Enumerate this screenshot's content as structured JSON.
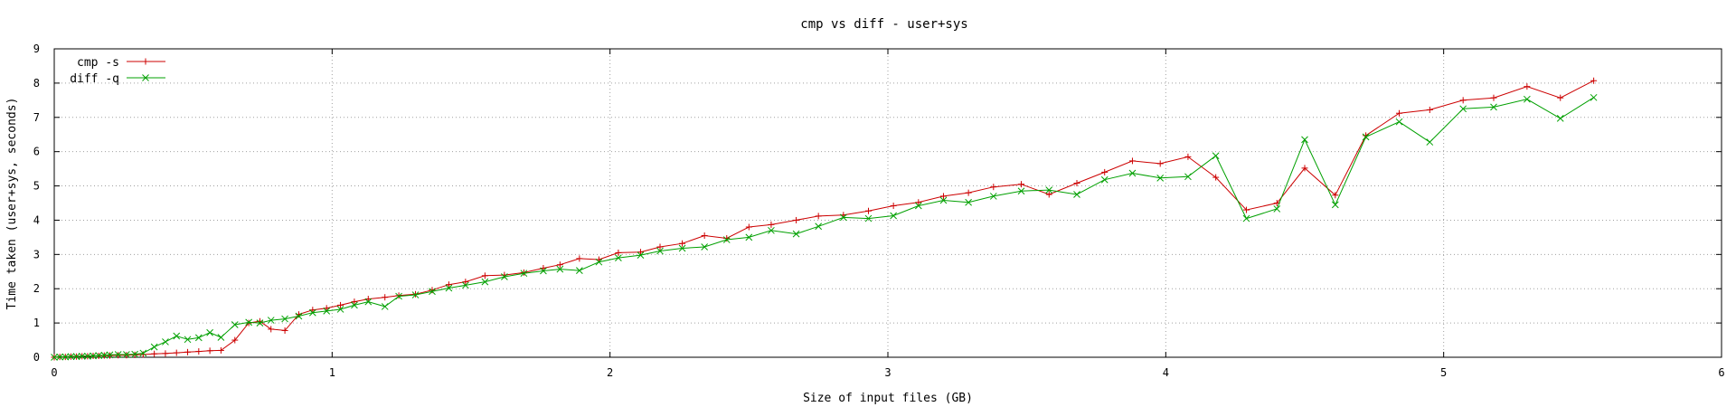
{
  "chart_data": {
    "type": "line",
    "title": "cmp vs diff - user+sys",
    "xlabel": "Size of input files (GB)",
    "ylabel": "Time taken (user+sys, seconds)",
    "xlim": [
      0,
      6
    ],
    "ylim": [
      0,
      9
    ],
    "xticks": [
      "0",
      "1",
      "2",
      "3",
      "4",
      "5",
      "6"
    ],
    "yticks": [
      "0",
      "1",
      "2",
      "3",
      "4",
      "5",
      "6",
      "7",
      "8",
      "9"
    ],
    "grid": true,
    "legend_position": "top-left",
    "series": [
      {
        "name": "cmp -s",
        "color": "#cc0000",
        "marker": "plus",
        "points": [
          [
            0.0,
            0.0
          ],
          [
            0.02,
            0.01
          ],
          [
            0.04,
            0.01
          ],
          [
            0.06,
            0.02
          ],
          [
            0.08,
            0.02
          ],
          [
            0.1,
            0.03
          ],
          [
            0.12,
            0.03
          ],
          [
            0.14,
            0.04
          ],
          [
            0.16,
            0.04
          ],
          [
            0.18,
            0.05
          ],
          [
            0.2,
            0.05
          ],
          [
            0.23,
            0.06
          ],
          [
            0.26,
            0.06
          ],
          [
            0.29,
            0.07
          ],
          [
            0.32,
            0.08
          ],
          [
            0.36,
            0.1
          ],
          [
            0.4,
            0.11
          ],
          [
            0.44,
            0.13
          ],
          [
            0.48,
            0.15
          ],
          [
            0.52,
            0.17
          ],
          [
            0.56,
            0.19
          ],
          [
            0.6,
            0.2
          ],
          [
            0.65,
            0.5
          ],
          [
            0.7,
            1.0
          ],
          [
            0.74,
            1.05
          ],
          [
            0.78,
            0.82
          ],
          [
            0.83,
            0.78
          ],
          [
            0.88,
            1.25
          ],
          [
            0.93,
            1.38
          ],
          [
            0.98,
            1.43
          ],
          [
            1.03,
            1.52
          ],
          [
            1.08,
            1.62
          ],
          [
            1.13,
            1.7
          ],
          [
            1.19,
            1.75
          ],
          [
            1.24,
            1.8
          ],
          [
            1.3,
            1.84
          ],
          [
            1.36,
            1.96
          ],
          [
            1.42,
            2.12
          ],
          [
            1.48,
            2.2
          ],
          [
            1.55,
            2.38
          ],
          [
            1.62,
            2.4
          ],
          [
            1.69,
            2.47
          ],
          [
            1.76,
            2.6
          ],
          [
            1.82,
            2.7
          ],
          [
            1.89,
            2.88
          ],
          [
            1.96,
            2.85
          ],
          [
            2.03,
            3.05
          ],
          [
            2.11,
            3.07
          ],
          [
            2.18,
            3.22
          ],
          [
            2.26,
            3.32
          ],
          [
            2.34,
            3.55
          ],
          [
            2.42,
            3.47
          ],
          [
            2.5,
            3.8
          ],
          [
            2.58,
            3.87
          ],
          [
            2.67,
            4.0
          ],
          [
            2.75,
            4.12
          ],
          [
            2.84,
            4.15
          ],
          [
            2.93,
            4.27
          ],
          [
            3.02,
            4.42
          ],
          [
            3.11,
            4.52
          ],
          [
            3.2,
            4.7
          ],
          [
            3.29,
            4.8
          ],
          [
            3.38,
            4.97
          ],
          [
            3.48,
            5.05
          ],
          [
            3.58,
            4.75
          ],
          [
            3.68,
            5.08
          ],
          [
            3.78,
            5.4
          ],
          [
            3.88,
            5.73
          ],
          [
            3.98,
            5.65
          ],
          [
            4.08,
            5.85
          ],
          [
            4.18,
            5.25
          ],
          [
            4.29,
            4.3
          ],
          [
            4.4,
            4.5
          ],
          [
            4.5,
            5.52
          ],
          [
            4.61,
            4.73
          ],
          [
            4.72,
            6.47
          ],
          [
            4.84,
            7.12
          ],
          [
            4.95,
            7.22
          ],
          [
            5.07,
            7.5
          ],
          [
            5.18,
            7.57
          ],
          [
            5.3,
            7.9
          ],
          [
            5.42,
            7.57
          ],
          [
            5.54,
            8.07
          ]
        ]
      },
      {
        "name": "diff -q",
        "color": "#00a000",
        "marker": "cross",
        "points": [
          [
            0.0,
            0.0
          ],
          [
            0.02,
            0.01
          ],
          [
            0.04,
            0.01
          ],
          [
            0.06,
            0.02
          ],
          [
            0.08,
            0.02
          ],
          [
            0.1,
            0.03
          ],
          [
            0.12,
            0.03
          ],
          [
            0.14,
            0.04
          ],
          [
            0.16,
            0.05
          ],
          [
            0.18,
            0.06
          ],
          [
            0.2,
            0.07
          ],
          [
            0.23,
            0.08
          ],
          [
            0.26,
            0.08
          ],
          [
            0.29,
            0.09
          ],
          [
            0.32,
            0.12
          ],
          [
            0.36,
            0.3
          ],
          [
            0.4,
            0.45
          ],
          [
            0.44,
            0.62
          ],
          [
            0.48,
            0.52
          ],
          [
            0.52,
            0.57
          ],
          [
            0.56,
            0.72
          ],
          [
            0.6,
            0.58
          ],
          [
            0.65,
            0.95
          ],
          [
            0.7,
            1.02
          ],
          [
            0.74,
            1.0
          ],
          [
            0.78,
            1.08
          ],
          [
            0.83,
            1.12
          ],
          [
            0.88,
            1.2
          ],
          [
            0.93,
            1.3
          ],
          [
            0.98,
            1.35
          ],
          [
            1.03,
            1.4
          ],
          [
            1.08,
            1.52
          ],
          [
            1.13,
            1.62
          ],
          [
            1.19,
            1.48
          ],
          [
            1.24,
            1.78
          ],
          [
            1.3,
            1.82
          ],
          [
            1.36,
            1.92
          ],
          [
            1.42,
            2.02
          ],
          [
            1.48,
            2.1
          ],
          [
            1.55,
            2.2
          ],
          [
            1.62,
            2.35
          ],
          [
            1.69,
            2.45
          ],
          [
            1.76,
            2.52
          ],
          [
            1.82,
            2.57
          ],
          [
            1.89,
            2.53
          ],
          [
            1.96,
            2.78
          ],
          [
            2.03,
            2.9
          ],
          [
            2.11,
            2.98
          ],
          [
            2.18,
            3.1
          ],
          [
            2.26,
            3.18
          ],
          [
            2.34,
            3.22
          ],
          [
            2.42,
            3.43
          ],
          [
            2.5,
            3.5
          ],
          [
            2.58,
            3.7
          ],
          [
            2.67,
            3.6
          ],
          [
            2.75,
            3.82
          ],
          [
            2.84,
            4.08
          ],
          [
            2.93,
            4.05
          ],
          [
            3.02,
            4.13
          ],
          [
            3.11,
            4.42
          ],
          [
            3.2,
            4.58
          ],
          [
            3.29,
            4.52
          ],
          [
            3.38,
            4.7
          ],
          [
            3.48,
            4.85
          ],
          [
            3.58,
            4.88
          ],
          [
            3.68,
            4.75
          ],
          [
            3.78,
            5.18
          ],
          [
            3.88,
            5.37
          ],
          [
            3.98,
            5.23
          ],
          [
            4.08,
            5.27
          ],
          [
            4.18,
            5.88
          ],
          [
            4.29,
            4.05
          ],
          [
            4.4,
            4.33
          ],
          [
            4.5,
            6.35
          ],
          [
            4.61,
            4.45
          ],
          [
            4.72,
            6.43
          ],
          [
            4.84,
            6.87
          ],
          [
            4.95,
            6.28
          ],
          [
            5.07,
            7.25
          ],
          [
            5.18,
            7.3
          ],
          [
            5.3,
            7.53
          ],
          [
            5.42,
            6.97
          ],
          [
            5.54,
            7.58
          ]
        ]
      }
    ]
  }
}
